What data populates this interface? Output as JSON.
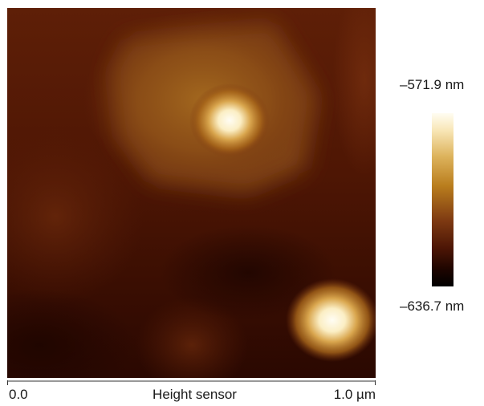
{
  "image": {
    "kind": "AFM height map",
    "colormap": [
      "#000000",
      "#4c1505",
      "#7e3a12",
      "#b97d1d",
      "#ddb35c",
      "#fffdf2"
    ]
  },
  "scale_bar": {
    "min_label": "0.0",
    "title": "Height sensor",
    "max_label": "1.0 µm"
  },
  "colorbar": {
    "max_label": "–571.9 nm",
    "min_label": "–636.7 nm"
  }
}
